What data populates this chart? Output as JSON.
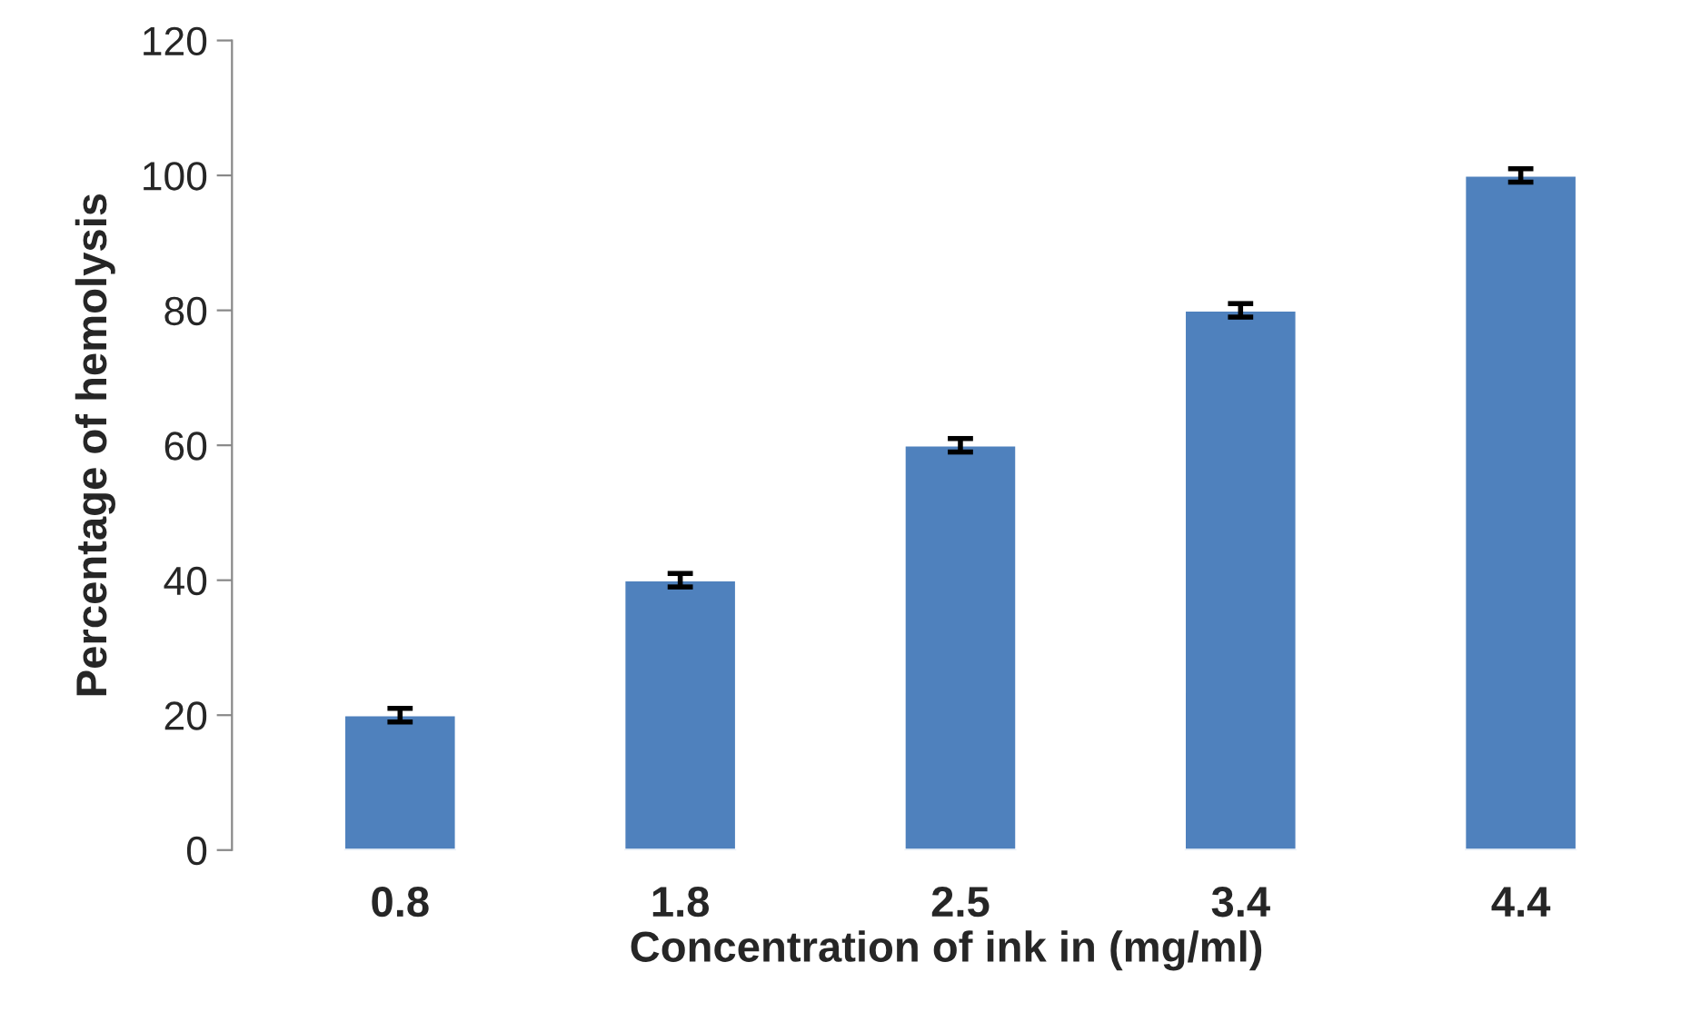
{
  "chart_data": {
    "type": "bar",
    "xlabel": "Concentration of ink in (mg/ml)",
    "ylabel": "Percentage of hemolysis",
    "categories": [
      "0.8",
      "1.8",
      "2.5",
      "3.4",
      "4.4"
    ],
    "values": [
      20,
      40,
      60,
      80,
      100
    ],
    "errors": [
      1,
      1,
      1,
      1,
      1
    ],
    "color": "#4f81bd",
    "ylim": [
      0,
      120
    ],
    "yticks": [
      0,
      20,
      40,
      60,
      80,
      100,
      120
    ],
    "grid": false
  }
}
